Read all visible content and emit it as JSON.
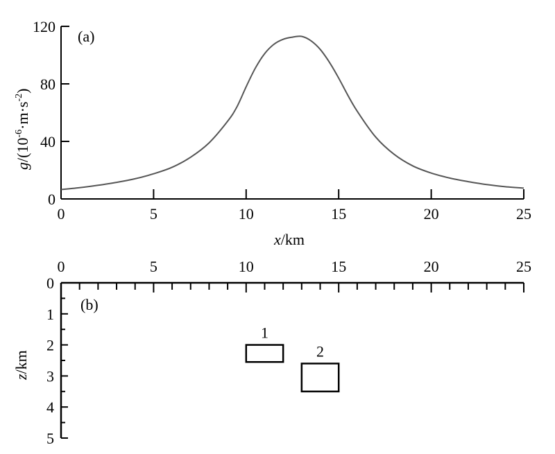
{
  "chart_data": [
    {
      "panel": "(a)",
      "type": "line",
      "xlabel_italic": "x",
      "xlabel_unit": "/km",
      "ylabel_italic": "g",
      "ylabel_rest": "/(10",
      "ylabel_exp1": "-6",
      "ylabel_mid": "·m·s",
      "ylabel_exp2": "-2",
      "ylabel_close": ")",
      "xlim": [
        0,
        25
      ],
      "ylim": [
        0,
        120
      ],
      "xticks": [
        "0",
        "5",
        "10",
        "15",
        "20",
        "25"
      ],
      "yticks": [
        "0",
        "40",
        "80",
        "120"
      ],
      "grid": false,
      "series": [
        {
          "x": [
            0,
            1,
            2,
            3,
            4,
            5,
            6,
            7,
            8,
            9,
            9.5,
            10,
            10.5,
            11,
            11.5,
            12,
            12.5,
            13,
            13.5,
            14,
            14.5,
            15,
            15.5,
            16,
            17,
            18,
            19,
            20,
            21,
            22,
            23,
            24,
            25
          ],
          "y": [
            6.5,
            7.8,
            9.5,
            11.5,
            14,
            17.5,
            22,
            29,
            39,
            54,
            64,
            78,
            91,
            101,
            107.5,
            111,
            112.5,
            113,
            110,
            104,
            95,
            84,
            72,
            61,
            43,
            31,
            23,
            18,
            14.5,
            12,
            10,
            8.5,
            7.5
          ]
        }
      ]
    },
    {
      "panel": "(b)",
      "type": "diagram",
      "xlabel": "",
      "ylabel_italic": "z",
      "ylabel_unit": "/km",
      "xlim": [
        0,
        25
      ],
      "ylim": [
        5,
        0
      ],
      "xticks": [
        "0",
        "5",
        "10",
        "15",
        "20",
        "25"
      ],
      "yticks": [
        "0",
        "1",
        "2",
        "3",
        "4",
        "5"
      ],
      "bodies": [
        {
          "label": "1",
          "x0": 10,
          "x1": 12,
          "z0": 2.0,
          "z1": 2.55
        },
        {
          "label": "2",
          "x0": 13,
          "x1": 15,
          "z0": 2.6,
          "z1": 3.5
        }
      ]
    }
  ]
}
